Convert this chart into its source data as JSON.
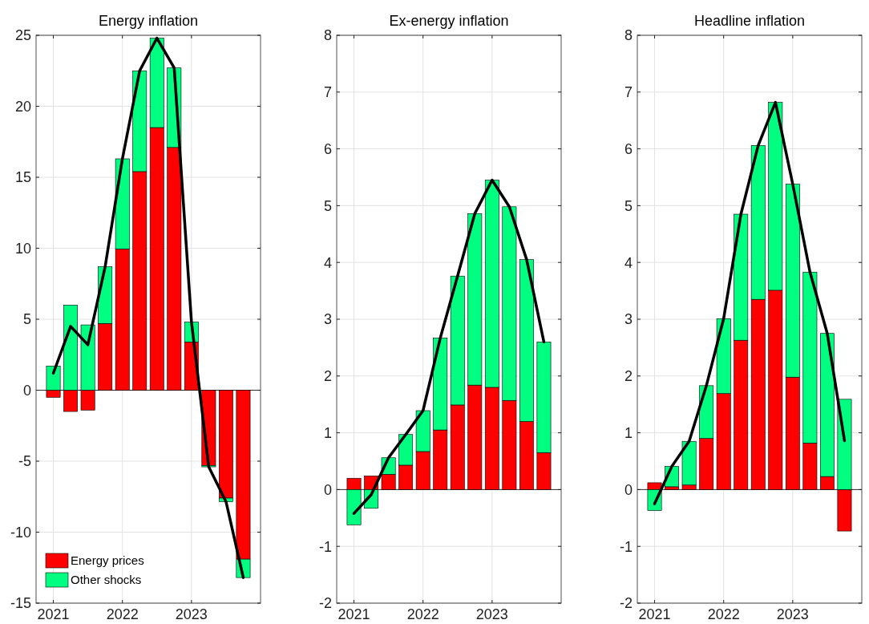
{
  "chart_data": [
    {
      "type": "bar",
      "title": "Energy inflation",
      "stacked": true,
      "grid": true,
      "legend": "bottom left",
      "x": [
        2021,
        2021.25,
        2021.5,
        2021.75,
        2022,
        2022.25,
        2022.5,
        2022.75,
        2023,
        2023.25,
        2023.5,
        2023.75
      ],
      "xlim": [
        2020.75,
        2024
      ],
      "xticks": [
        2021,
        2022,
        2023
      ],
      "ylim": [
        -15,
        25
      ],
      "yticks": [
        -15,
        -10,
        -5,
        0,
        5,
        10,
        15,
        20,
        25
      ],
      "series": [
        {
          "name": "Energy prices",
          "color": "#ff0000",
          "values": [
            -0.5,
            -1.5,
            -1.4,
            4.7,
            9.95,
            15.4,
            18.5,
            17.1,
            3.4,
            -5.3,
            -7.6,
            -11.9
          ]
        },
        {
          "name": "Other shocks",
          "color": "#00ff80",
          "values": [
            1.7,
            6.0,
            4.6,
            4.0,
            6.35,
            7.1,
            6.3,
            5.6,
            1.4,
            -0.1,
            -0.25,
            -1.3
          ]
        },
        {
          "type": "line",
          "color": "#000000",
          "values": [
            1.2,
            4.5,
            3.2,
            8.7,
            16.3,
            22.5,
            24.8,
            22.7,
            4.8,
            -5.4,
            -7.85,
            -13.2
          ]
        }
      ]
    },
    {
      "type": "bar",
      "title": "Ex-energy inflation",
      "stacked": true,
      "grid": true,
      "x": [
        2021,
        2021.25,
        2021.5,
        2021.75,
        2022,
        2022.25,
        2022.5,
        2022.75,
        2023,
        2023.25,
        2023.5,
        2023.75
      ],
      "xlim": [
        2020.75,
        2024
      ],
      "xticks": [
        2021,
        2022,
        2023
      ],
      "ylim": [
        -2,
        8
      ],
      "yticks": [
        -2,
        -1,
        0,
        1,
        2,
        3,
        4,
        5,
        6,
        7,
        8
      ],
      "series": [
        {
          "color": "#ff0000",
          "values": [
            0.2,
            0.24,
            0.27,
            0.43,
            0.67,
            1.05,
            1.49,
            1.84,
            1.8,
            1.57,
            1.2,
            0.65
          ]
        },
        {
          "color": "#00ff80",
          "values": [
            -0.62,
            -0.33,
            0.29,
            0.54,
            0.72,
            1.62,
            2.27,
            3.02,
            3.65,
            3.41,
            2.85,
            1.95
          ]
        },
        {
          "type": "line",
          "color": "#000000",
          "values": [
            -0.42,
            -0.09,
            0.56,
            0.97,
            1.39,
            2.67,
            3.76,
            4.86,
            5.45,
            4.98,
            4.05,
            2.6
          ]
        }
      ]
    },
    {
      "type": "bar",
      "title": "Headline inflation",
      "stacked": true,
      "grid": true,
      "x": [
        2021,
        2021.25,
        2021.5,
        2021.75,
        2022,
        2022.25,
        2022.5,
        2022.75,
        2023,
        2023.25,
        2023.5,
        2023.75
      ],
      "xlim": [
        2020.75,
        2024
      ],
      "xticks": [
        2021,
        2022,
        2023
      ],
      "ylim": [
        -2,
        8
      ],
      "yticks": [
        -2,
        -1,
        0,
        1,
        2,
        3,
        4,
        5,
        6,
        7,
        8
      ],
      "series": [
        {
          "color": "#ff0000",
          "values": [
            0.12,
            0.05,
            0.08,
            0.9,
            1.69,
            2.63,
            3.35,
            3.51,
            1.98,
            0.82,
            0.23,
            -0.73
          ]
        },
        {
          "color": "#00ff80",
          "values": [
            -0.37,
            0.36,
            0.77,
            0.93,
            1.32,
            2.22,
            2.71,
            3.31,
            3.4,
            3.01,
            2.52,
            1.59
          ]
        },
        {
          "type": "line",
          "color": "#000000",
          "values": [
            -0.25,
            0.41,
            0.85,
            1.83,
            3.01,
            4.85,
            6.06,
            6.82,
            5.38,
            3.83,
            2.75,
            0.86
          ]
        }
      ]
    }
  ]
}
